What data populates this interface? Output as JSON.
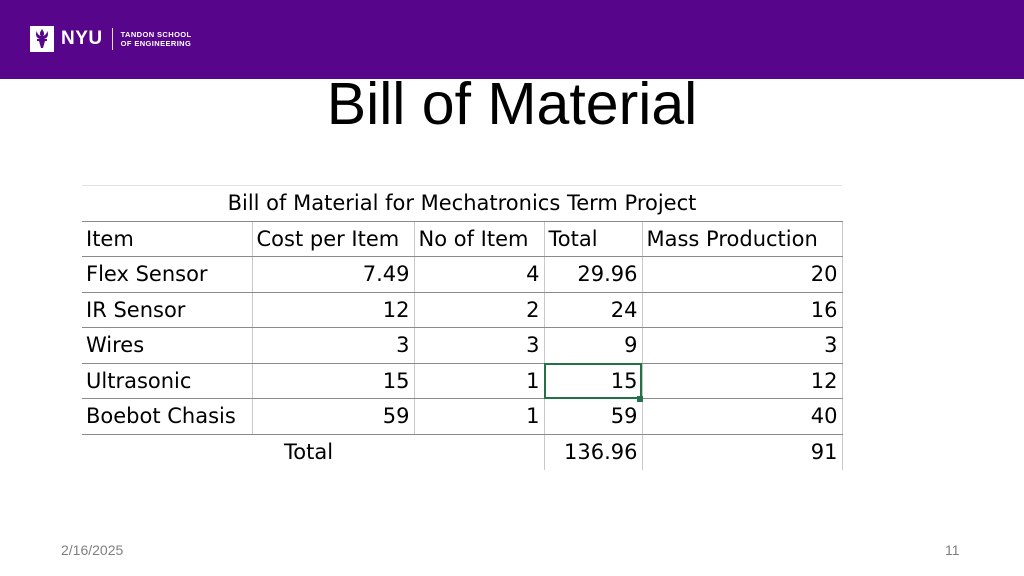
{
  "header": {
    "logo_word": "NYU",
    "logo_sub_line1": "TANDON SCHOOL",
    "logo_sub_line2": "OF ENGINEERING",
    "brand_color": "#57068c",
    "logo_icon": "torch-icon"
  },
  "slide": {
    "title": "Bill of Material"
  },
  "table": {
    "caption": "Bill of Material for Mechatronics Term Project",
    "headers": [
      "Item",
      "Cost per Item",
      "No of Item",
      "Total",
      "Mass Production"
    ],
    "rows": [
      [
        "Flex Sensor",
        "7.49",
        "4",
        "29.96",
        "20"
      ],
      [
        "IR Sensor",
        "12",
        "2",
        "24",
        "16"
      ],
      [
        "Wires",
        "3",
        "3",
        "9",
        "3"
      ],
      [
        "Ultrasonic",
        "15",
        "1",
        "15",
        "12"
      ],
      [
        "Boebot Chasis",
        "59",
        "1",
        "59",
        "40"
      ]
    ],
    "totals": {
      "label": "Total",
      "total": "136.96",
      "mass_production": "91"
    },
    "selection_color": "#217346"
  },
  "footer": {
    "date": "2/16/2025",
    "page_number": "11"
  }
}
